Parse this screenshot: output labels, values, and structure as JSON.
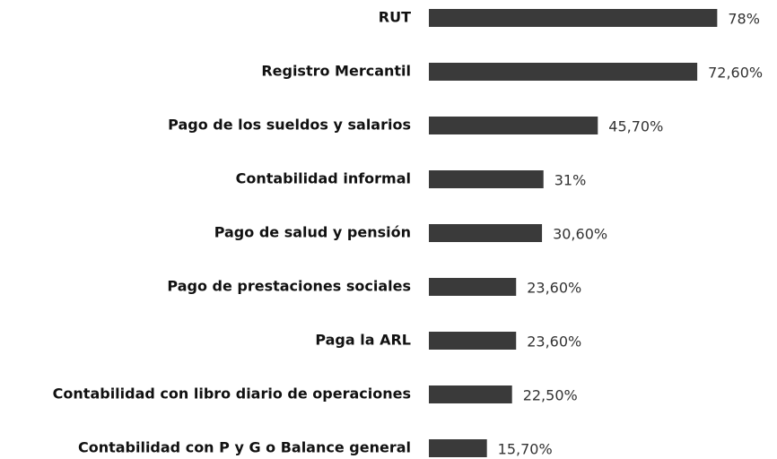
{
  "chart_data": {
    "type": "bar",
    "orientation": "horizontal",
    "categories": [
      "RUT",
      "Registro Mercantil",
      "Pago de los sueldos y salarios",
      "Contabilidad informal",
      "Pago de salud y pensión",
      "Pago de prestaciones sociales",
      "Paga la ARL",
      "Contabilidad con libro diario de operaciones",
      "Contabilidad con P y G o Balance general"
    ],
    "values": [
      78,
      72.6,
      45.7,
      31,
      30.6,
      23.6,
      23.6,
      22.5,
      15.7
    ],
    "value_labels": [
      "78%",
      "72,60%",
      "45,70%",
      "31%",
      "30,60%",
      "23,60%",
      "23,60%",
      "22,50%",
      "15,70%"
    ],
    "color": "#3a3a3a"
  }
}
